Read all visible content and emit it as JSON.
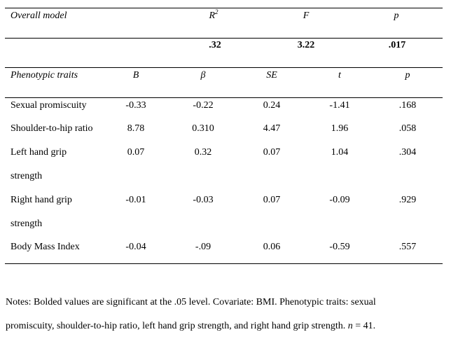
{
  "model": {
    "label": "Overall model",
    "headers": {
      "r2": "R",
      "r2_sup": "2",
      "f": "F",
      "p": "p"
    },
    "values": {
      "r2": ".32",
      "f": "3.22",
      "p": ".017"
    }
  },
  "traits": {
    "header": {
      "label": "Phenotypic traits",
      "b": "B",
      "beta": "β",
      "se": "SE",
      "t": "t",
      "p": "p"
    },
    "rows": [
      {
        "name_line1": "Sexual promiscuity",
        "name_line2": "",
        "b": "-0.33",
        "beta": "-0.22",
        "se": "0.24",
        "t": "-1.41",
        "p": ".168"
      },
      {
        "name_line1": "Shoulder-to-hip ratio",
        "name_line2": "",
        "b": "8.78",
        "beta": "0.310",
        "se": "4.47",
        "t": "1.96",
        "p": ".058"
      },
      {
        "name_line1": "Left hand grip",
        "name_line2": "strength",
        "b": "0.07",
        "beta": "0.32",
        "se": "0.07",
        "t": "1.04",
        "p": ".304"
      },
      {
        "name_line1": "Right hand grip",
        "name_line2": "strength",
        "b": "-0.01",
        "beta": "-0.03",
        "se": "0.07",
        "t": "-0.09",
        "p": ".929"
      },
      {
        "name_line1": "Body Mass Index",
        "name_line2": "",
        "b": "-0.04",
        "beta": "-.09",
        "se": "0.06",
        "t": "-0.59",
        "p": ".557"
      }
    ]
  },
  "notes": {
    "line1": "Notes: Bolded values are significant at the .05 level. Covariate: BMI. Phenotypic traits: sexual",
    "line2_pre": "promiscuity, shoulder-to-hip ratio, left hand grip strength, and right hand grip strength. ",
    "line2_n": "n",
    "line2_post": " = 41."
  }
}
